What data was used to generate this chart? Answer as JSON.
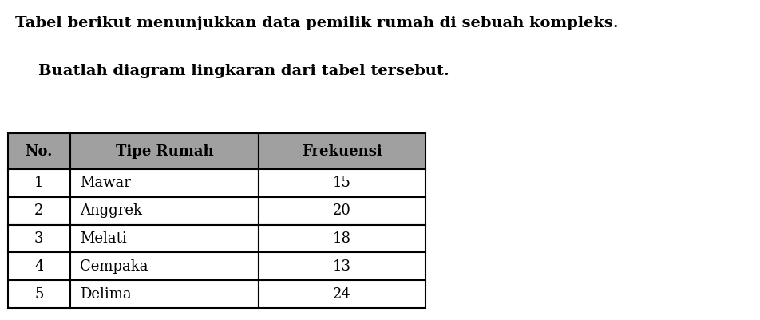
{
  "title_line1": "Tabel berikut menunjukkan data pemilik rumah di sebuah kompleks.",
  "title_line2": "Buatlah diagram lingkaran dari tabel tersebut.",
  "col_headers": [
    "No.",
    "Tipe Rumah",
    "Frekuensi"
  ],
  "rows": [
    [
      "1",
      "Mawar",
      "15"
    ],
    [
      "2",
      "Anggrek",
      "20"
    ],
    [
      "3",
      "Melati",
      "18"
    ],
    [
      "4",
      "Cempaka",
      "13"
    ],
    [
      "5",
      "Delima",
      "24"
    ]
  ],
  "header_facecolor": "#a0a0a0",
  "cell_facecolor": "#ffffff",
  "grid_color": "#000000",
  "text_color": "#000000",
  "bg_color": "#ffffff",
  "font_size_title": 14,
  "font_size_table": 13
}
